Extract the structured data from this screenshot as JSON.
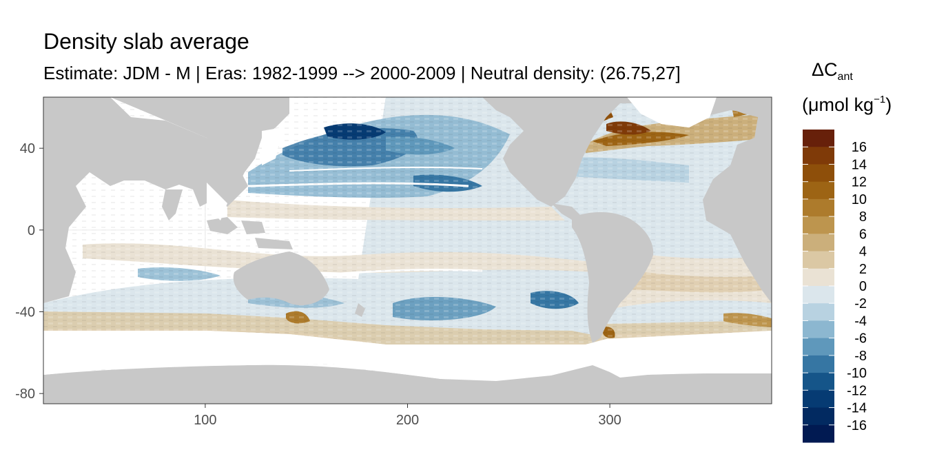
{
  "chart_data": {
    "type": "heatmap",
    "title": "Density slab average",
    "subtitle": "Estimate: JDM - M | Eras: 1982-1999 --> 2000-2009 | Neutral density: (26.75,27]",
    "x_ticks": [
      100,
      200,
      300
    ],
    "y_ticks": [
      40,
      0,
      -40,
      -80
    ],
    "xlim": [
      20,
      380
    ],
    "ylim": [
      -85,
      65
    ],
    "legend": {
      "title_main": "ΔC",
      "title_sub": "ant",
      "unit_prefix": "(μmol kg",
      "unit_sup": "−1",
      "unit_suffix": ")",
      "labels": [
        "16",
        "14",
        "12",
        "10",
        "8",
        "6",
        "4",
        "2",
        "0",
        "-2",
        "-4",
        "-6",
        "-8",
        "-10",
        "-12",
        "-14",
        "-16"
      ],
      "colors": [
        "#67200a",
        "#7f3a08",
        "#8e4f0a",
        "#9d6414",
        "#ad7b2c",
        "#bd954e",
        "#cbaf7b",
        "#dbc8a4",
        "#eae2d4",
        "#dbe6ec",
        "#b8d2e1",
        "#8cb7d0",
        "#5f98bb",
        "#3676a3",
        "#155589",
        "#063b73",
        "#022a61",
        "#011a52"
      ]
    },
    "grid": true,
    "colors": {
      "land": "#c8c8c8",
      "panel": "#ffffff",
      "gridline": "#ebebeb",
      "border": "#333333"
    }
  }
}
